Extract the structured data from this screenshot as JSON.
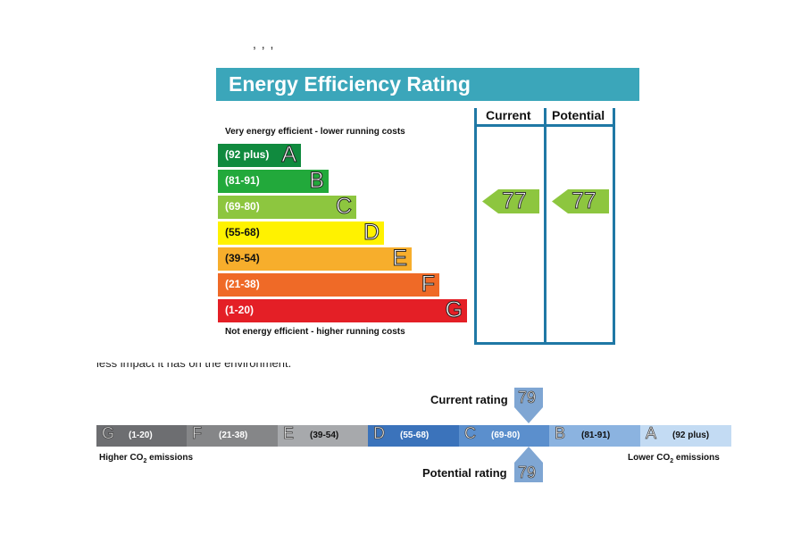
{
  "top_fragment": ", ,  ,",
  "mid_fragment": "less impact it has on the environment.",
  "epc": {
    "title": "Energy Efficiency Rating",
    "col_current": "Current",
    "col_potential": "Potential",
    "top_caption": "Very energy efficient - lower running costs",
    "bottom_caption": "Not energy efficient - higher running costs",
    "bands": [
      {
        "range": "(92 plus)",
        "letter": "A",
        "color": "#108a3e"
      },
      {
        "range": "(81-91)",
        "letter": "B",
        "color": "#22a93b"
      },
      {
        "range": "(69-80)",
        "letter": "C",
        "color": "#8dc63f"
      },
      {
        "range": "(55-68)",
        "letter": "D",
        "color": "#fff200"
      },
      {
        "range": "(39-54)",
        "letter": "E",
        "color": "#f7ae2c"
      },
      {
        "range": "(21-38)",
        "letter": "F",
        "color": "#ef6a27"
      },
      {
        "range": "(1-20)",
        "letter": "G",
        "color": "#e41f26"
      }
    ],
    "current": 77,
    "potential": 77
  },
  "co2": {
    "segments": [
      {
        "letter": "G",
        "range": "(1-20)",
        "color": "#6d6e71"
      },
      {
        "letter": "F",
        "range": "(21-38)",
        "color": "#858688"
      },
      {
        "letter": "E",
        "range": "(39-54)",
        "color": "#a7a9ac"
      },
      {
        "letter": "D",
        "range": "(55-68)",
        "color": "#3b73bb"
      },
      {
        "letter": "C",
        "range": "(69-80)",
        "color": "#5b8fcd"
      },
      {
        "letter": "B",
        "range": "(81-91)",
        "color": "#8bb3e0"
      },
      {
        "letter": "A",
        "range": "(92 plus)",
        "color": "#c3dbf3"
      }
    ],
    "left_caption": "Higher CO",
    "right_caption": "Lower CO",
    "caption_sub": "2",
    "caption_suffix": " emissions",
    "current_label": "Current rating",
    "current_value": "79",
    "potential_label": "Potential rating",
    "potential_value": "79"
  }
}
